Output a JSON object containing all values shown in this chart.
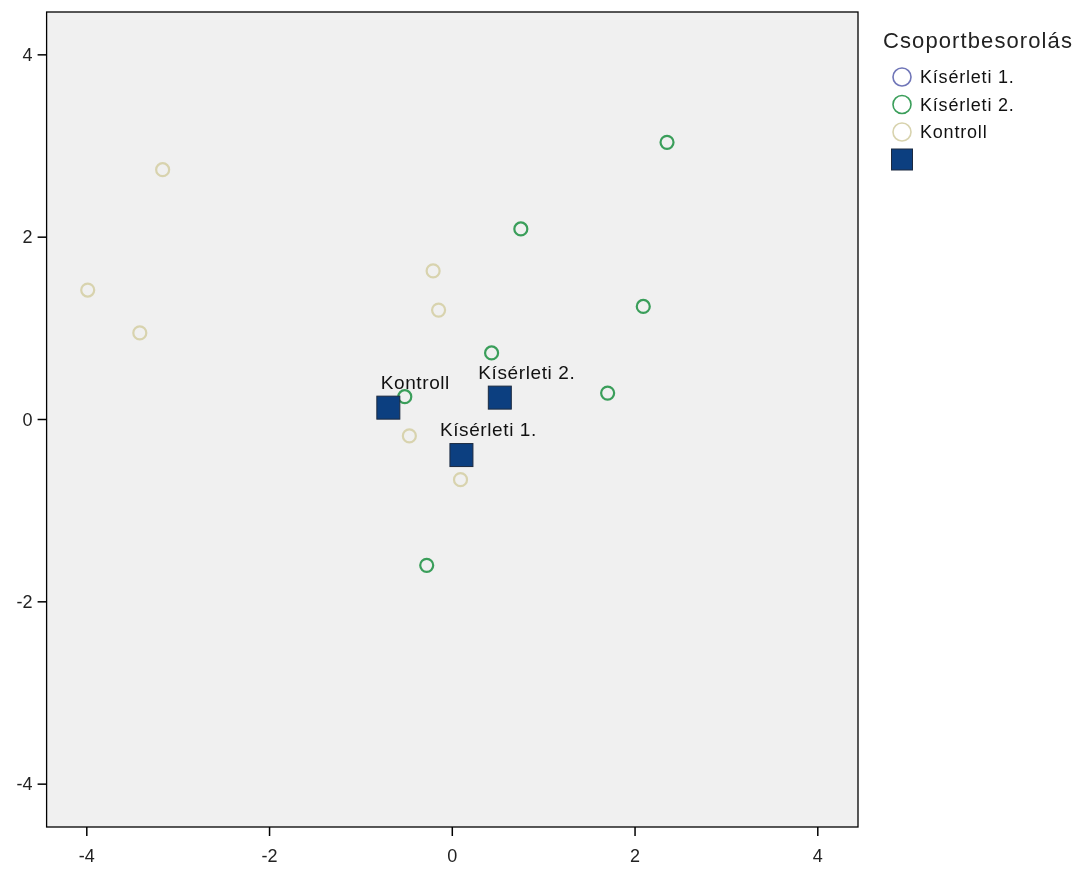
{
  "chart_data": {
    "type": "scatter",
    "legend_title": "Csoportbesorolás",
    "legend": "top right",
    "marker": "circle",
    "xlim": [
      -4.44,
      4.44
    ],
    "ylim": [
      -4.47,
      4.47
    ],
    "xticks": [
      -4,
      -2,
      0,
      2,
      4
    ],
    "yticks": [
      -4,
      -2,
      0,
      2,
      4
    ],
    "series": [
      {
        "name": "Kísérleti 1.",
        "color": "#7076b8"
      },
      {
        "name": "Kísérleti 2.",
        "color": "#3a9e5a",
        "x": [
          0.75,
          2.35,
          2.09,
          0.43,
          1.7,
          -0.52,
          -0.28
        ],
        "values": [
          2.09,
          3.04,
          1.24,
          0.73,
          0.29,
          0.25,
          -1.6
        ]
      },
      {
        "name": "Kontroll",
        "color": "#d8d3ae",
        "x": [
          -3.17,
          -3.99,
          -3.42,
          -0.21,
          -0.15,
          -0.47,
          0.09
        ],
        "values": [
          2.74,
          1.42,
          0.95,
          1.63,
          1.2,
          -0.18,
          -0.66
        ]
      },
      {
        "color": "#0c3f80",
        "marker": "square",
        "x": [
          -0.7,
          0.52,
          0.1
        ],
        "values": [
          0.13,
          0.24,
          -0.39
        ]
      }
    ],
    "annotations": [
      {
        "text": "Kontroll",
        "x": -0.7,
        "y": 0.13
      },
      {
        "text": "Kísérleti 2.",
        "x": 0.52,
        "y": 0.24
      },
      {
        "text": "Kísérleti 1.",
        "x": 0.1,
        "y": -0.39
      }
    ]
  }
}
